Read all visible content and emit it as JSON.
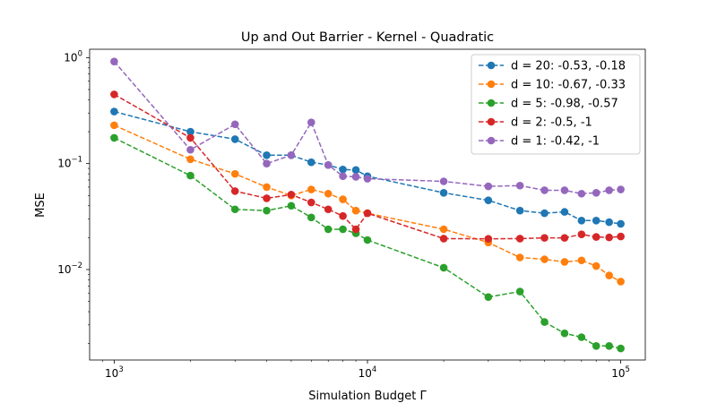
{
  "chart_data": {
    "type": "line",
    "title": "Up and Out Barrier - Kernel - Quadratic",
    "xlabel": "Simulation Budget Γ",
    "ylabel": "MSE",
    "xscale": "log",
    "yscale": "log",
    "xlim": [
      800,
      125000
    ],
    "ylim": [
      0.0014,
      1.2
    ],
    "grid": false,
    "legend_position": "top-right",
    "x_ticks": [
      {
        "value": 1000,
        "base": "10",
        "exp": "3"
      },
      {
        "value": 10000,
        "base": "10",
        "exp": "4"
      },
      {
        "value": 100000,
        "base": "10",
        "exp": "5"
      }
    ],
    "y_ticks": [
      {
        "value": 0.01,
        "base": "10",
        "exp": "−2"
      },
      {
        "value": 0.1,
        "base": "10",
        "exp": "−1"
      },
      {
        "value": 1,
        "base": "10",
        "exp": "0"
      }
    ],
    "x": [
      1000,
      2000,
      3000,
      4000,
      5000,
      6000,
      7000,
      8000,
      9000,
      10000,
      20000,
      30000,
      40000,
      50000,
      60000,
      70000,
      80000,
      90000,
      100000
    ],
    "series": [
      {
        "name": "d = 20: -0.53, -0.18",
        "color": "#1f77b4",
        "values": [
          0.31,
          0.2,
          0.17,
          0.12,
          0.12,
          0.103,
          0.097,
          0.088,
          0.087,
          0.076,
          0.053,
          0.045,
          0.036,
          0.034,
          0.035,
          0.029,
          0.029,
          0.028,
          0.027
        ]
      },
      {
        "name": "d = 10: -0.67, -0.33",
        "color": "#ff7f0e",
        "values": [
          0.23,
          0.11,
          0.08,
          0.06,
          0.05,
          0.057,
          0.052,
          0.046,
          0.036,
          0.034,
          0.024,
          0.018,
          0.013,
          0.0125,
          0.0118,
          0.0122,
          0.0108,
          0.0088,
          0.0077
        ]
      },
      {
        "name": "d = 5: -0.98, -0.57",
        "color": "#2ca02c",
        "values": [
          0.175,
          0.077,
          0.037,
          0.036,
          0.04,
          0.031,
          0.024,
          0.024,
          0.022,
          0.019,
          0.0104,
          0.0055,
          0.0062,
          0.0032,
          0.0025,
          0.0023,
          0.0019,
          0.0019,
          0.0018
        ]
      },
      {
        "name": "d = 2: -0.5, -1",
        "color": "#d62728",
        "values": [
          0.45,
          0.175,
          0.055,
          0.047,
          0.051,
          0.043,
          0.037,
          0.032,
          0.024,
          0.034,
          0.0196,
          0.0195,
          0.0196,
          0.0199,
          0.0199,
          0.0215,
          0.0203,
          0.0201,
          0.0205
        ]
      },
      {
        "name": "d = 1: -0.42, -1",
        "color": "#9467bd",
        "values": [
          0.92,
          0.135,
          0.235,
          0.1,
          0.12,
          0.245,
          0.097,
          0.076,
          0.075,
          0.072,
          0.068,
          0.061,
          0.062,
          0.056,
          0.056,
          0.052,
          0.053,
          0.056,
          0.057
        ]
      }
    ]
  }
}
